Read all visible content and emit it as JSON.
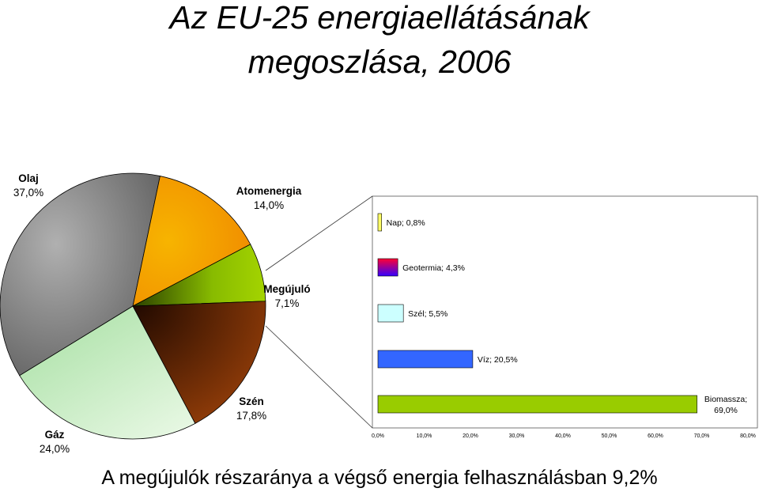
{
  "title_line1": "Az EU-25 energiaellátásának",
  "title_line2": "megoszlása, 2006",
  "footer": "A megújulók részaránya a végső energia felhasználásban 9,2%",
  "chart_data": [
    {
      "type": "pie",
      "slices": [
        {
          "name": "Olaj",
          "value": 37.0,
          "label": "37,0%",
          "color": "#8a8a8a"
        },
        {
          "name": "Atomenergia",
          "value": 14.0,
          "label": "14,0%",
          "color": "#f39a00"
        },
        {
          "name": "Megújuló",
          "value": 7.1,
          "label": "7,1%",
          "color": "#99cc00"
        },
        {
          "name": "Szén",
          "value": 17.8,
          "label": "17,8%",
          "color": "#7a2a05"
        },
        {
          "name": "Gáz",
          "value": 24.0,
          "label": "24,0%",
          "color": "#c8ecc6"
        }
      ]
    },
    {
      "type": "bar",
      "orientation": "horizontal",
      "categories": [
        "Nap",
        "Geotermia",
        "Szél",
        "Víz",
        "Biomassza"
      ],
      "values": [
        0.8,
        4.3,
        5.5,
        20.5,
        69.0
      ],
      "labels": [
        "Nap; 0,8%",
        "Geotermia; 4,3%",
        "Szél; 5,5%",
        "Víz; 20,5%",
        "Biomassza; 69,0%"
      ],
      "colors": [
        "#ffff66",
        "#cc0066",
        "#ccffff",
        "#3366ff",
        "#99cc00"
      ],
      "xlim": [
        0,
        80
      ],
      "ticks": [
        "0,0%",
        "10,0%",
        "20,0%",
        "30,0%",
        "40,0%",
        "50,0%",
        "60,0%",
        "70,0%",
        "80,0%"
      ]
    }
  ]
}
